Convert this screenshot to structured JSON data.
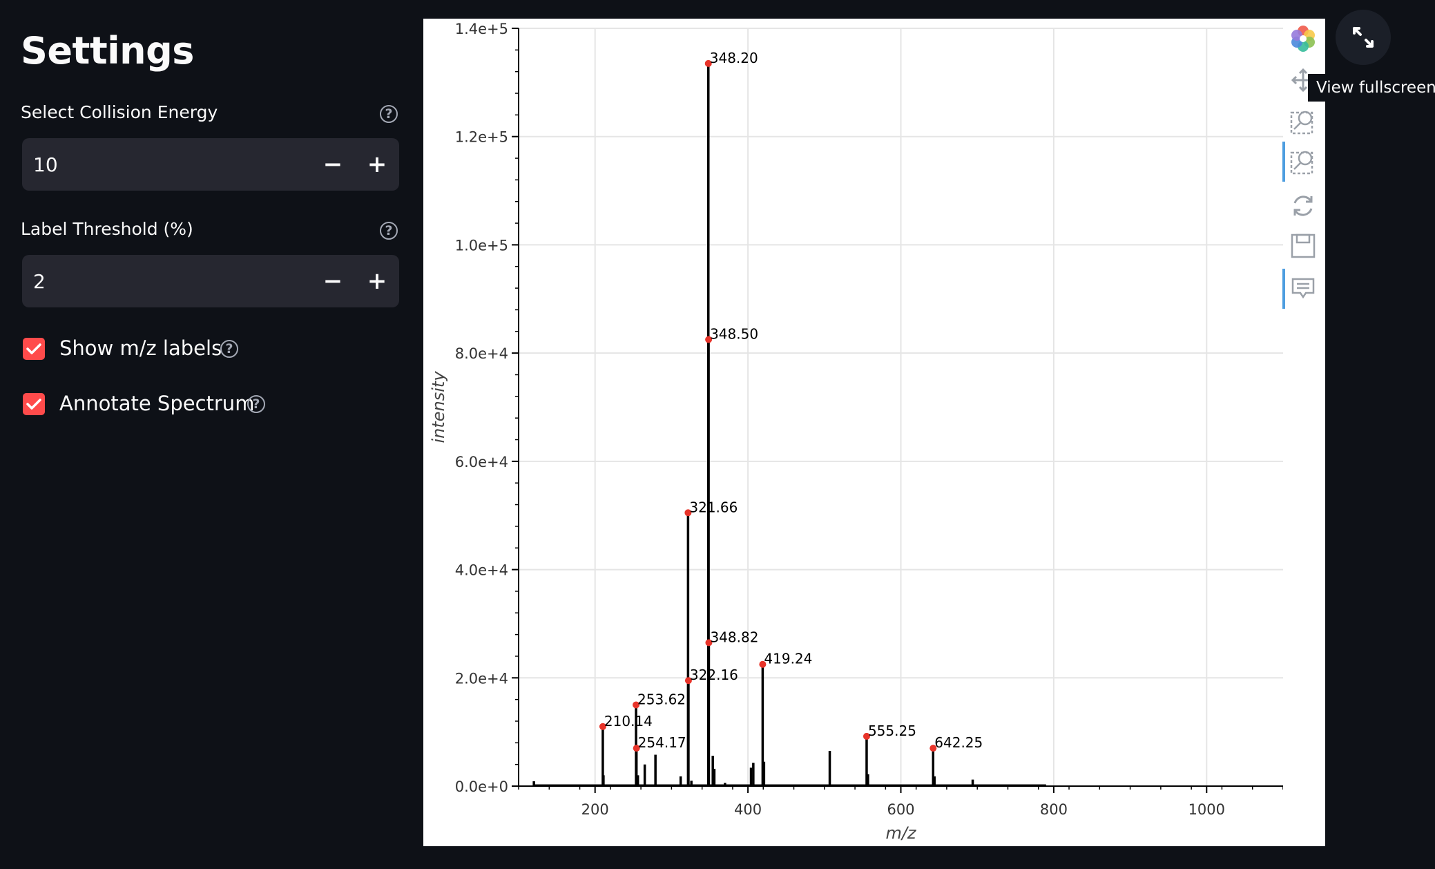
{
  "sidebar": {
    "title": "Settings",
    "collision_energy": {
      "label": "Select Collision Energy",
      "value": "10"
    },
    "label_threshold": {
      "label": "Label Threshold (%)",
      "value": "2"
    },
    "show_mz_labels": {
      "label": "Show m/z labels",
      "checked": true
    },
    "annotate_spectrum": {
      "label": "Annotate Spectrum",
      "checked": true
    },
    "minus": "−",
    "plus": "+",
    "help": "?"
  },
  "toolbar": {
    "tools": [
      "bokeh-logo-icon",
      "pan-icon",
      "box-zoom-icon",
      "wheel-zoom-icon",
      "reset-icon",
      "save-icon",
      "hover-icon"
    ]
  },
  "fullscreen_tooltip": "View fullscreen",
  "colors": {
    "accent": "#ff4b4b",
    "background": "#0e1117",
    "input_bg": "#262730",
    "marker": "#e8342a"
  },
  "chart_data": {
    "type": "bar",
    "xlabel": "m/z",
    "ylabel": "intensity",
    "xlim": [
      100,
      1100
    ],
    "ylim": [
      0,
      140000
    ],
    "x_ticks": [
      200,
      400,
      600,
      800,
      1000
    ],
    "x_tick_labels": [
      "200",
      "400",
      "600",
      "800",
      "1000"
    ],
    "y_ticks": [
      0,
      20000,
      40000,
      60000,
      80000,
      100000,
      120000,
      140000
    ],
    "y_tick_labels": [
      "0.0e+0",
      "2.0e+4",
      "4.0e+4",
      "6.0e+4",
      "8.0e+4",
      "1.0e+5",
      "1.2e+5",
      "1.4e+5"
    ],
    "grid": true,
    "peaks": [
      {
        "mz": 120,
        "intensity": 900
      },
      {
        "mz": 210.14,
        "intensity": 11000
      },
      {
        "mz": 211,
        "intensity": 2000
      },
      {
        "mz": 253.62,
        "intensity": 15000
      },
      {
        "mz": 254.17,
        "intensity": 7000
      },
      {
        "mz": 256,
        "intensity": 2000
      },
      {
        "mz": 265,
        "intensity": 4000
      },
      {
        "mz": 279,
        "intensity": 5800
      },
      {
        "mz": 312,
        "intensity": 1800
      },
      {
        "mz": 321.66,
        "intensity": 50500
      },
      {
        "mz": 322.16,
        "intensity": 19500
      },
      {
        "mz": 326,
        "intensity": 1000
      },
      {
        "mz": 348.2,
        "intensity": 133500
      },
      {
        "mz": 348.5,
        "intensity": 82500
      },
      {
        "mz": 348.82,
        "intensity": 26500
      },
      {
        "mz": 354,
        "intensity": 5600
      },
      {
        "mz": 356,
        "intensity": 3200
      },
      {
        "mz": 370,
        "intensity": 600
      },
      {
        "mz": 404,
        "intensity": 3400
      },
      {
        "mz": 407,
        "intensity": 4300
      },
      {
        "mz": 419.24,
        "intensity": 22500
      },
      {
        "mz": 421,
        "intensity": 4500
      },
      {
        "mz": 507,
        "intensity": 6500
      },
      {
        "mz": 555.25,
        "intensity": 9200
      },
      {
        "mz": 557,
        "intensity": 2200
      },
      {
        "mz": 642.25,
        "intensity": 7000
      },
      {
        "mz": 644,
        "intensity": 1800
      },
      {
        "mz": 694,
        "intensity": 1200
      }
    ],
    "annotated_peaks": [
      {
        "mz": 210.14,
        "intensity": 11000,
        "label": "210.14"
      },
      {
        "mz": 253.62,
        "intensity": 15000,
        "label": "253.62"
      },
      {
        "mz": 254.17,
        "intensity": 7000,
        "label": "254.17"
      },
      {
        "mz": 321.66,
        "intensity": 50500,
        "label": "321.66"
      },
      {
        "mz": 322.16,
        "intensity": 19500,
        "label": "322.16"
      },
      {
        "mz": 348.2,
        "intensity": 133500,
        "label": "348.20"
      },
      {
        "mz": 348.5,
        "intensity": 82500,
        "label": "348.50"
      },
      {
        "mz": 348.82,
        "intensity": 26500,
        "label": "348.82"
      },
      {
        "mz": 419.24,
        "intensity": 22500,
        "label": "419.24"
      },
      {
        "mz": 555.25,
        "intensity": 9200,
        "label": "555.25"
      },
      {
        "mz": 642.25,
        "intensity": 7000,
        "label": "642.25"
      }
    ],
    "baseline_range": [
      120,
      790
    ]
  }
}
